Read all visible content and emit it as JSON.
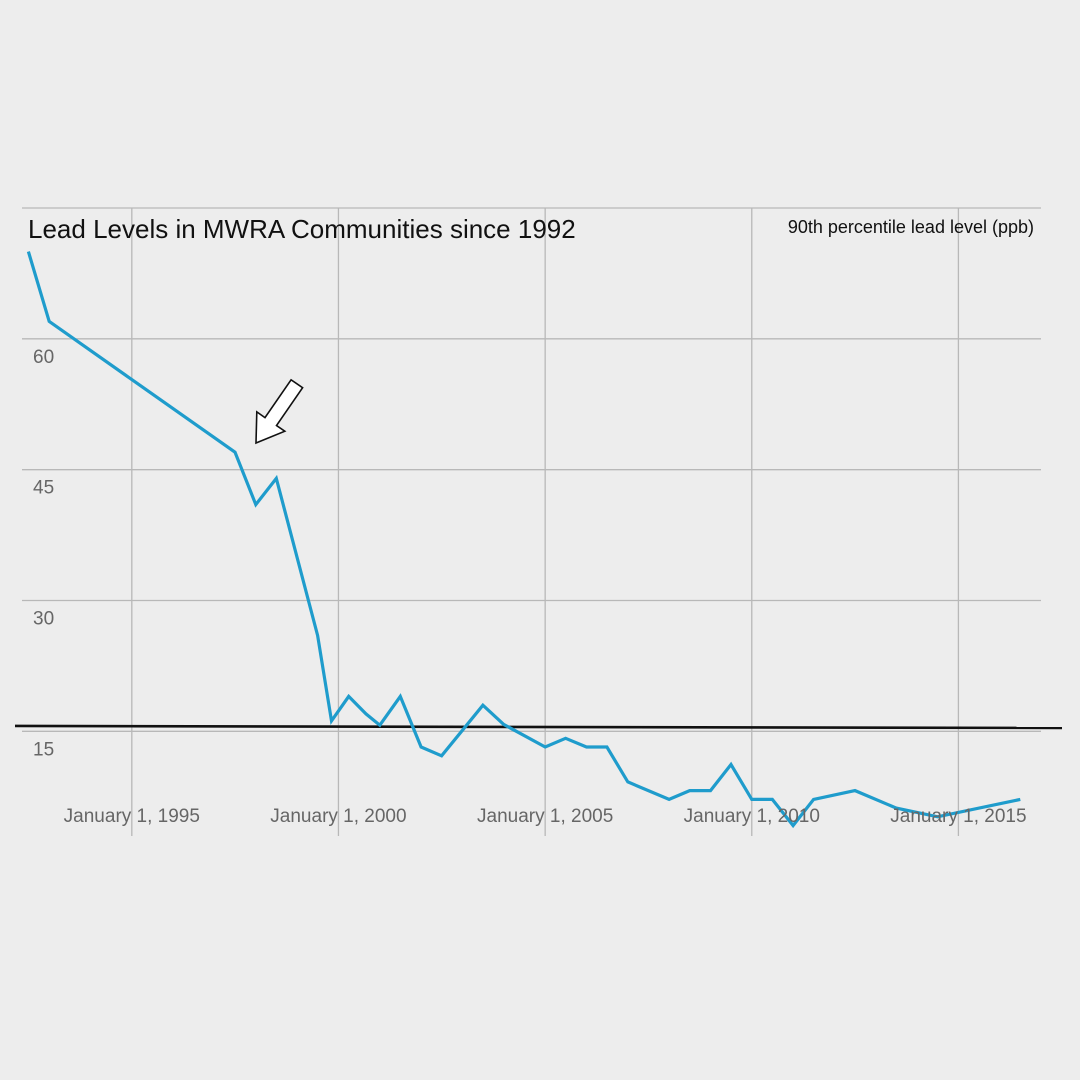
{
  "chart_data": {
    "type": "line",
    "title": "Lead Levels in MWRA Communities since 1992",
    "ylabel": "90th percentile lead level (ppb)",
    "xlabel": "",
    "x_tick_labels": [
      "January 1, 1995",
      "January 1, 2000",
      "January 1, 2005",
      "January 1, 2010",
      "January 1, 2015"
    ],
    "x_ticks": [
      "1995-01-01",
      "2000-01-01",
      "2005-01-01",
      "2010-01-01",
      "2015-01-01"
    ],
    "y_ticks": [
      15,
      30,
      45,
      60
    ],
    "xlim": [
      "1992-06-01",
      "2016-12-31"
    ],
    "ylim": [
      3,
      75
    ],
    "grid": true,
    "series": [
      {
        "color": "#1f9ccc",
        "points": [
          {
            "x": "1992-07-01",
            "y": 70
          },
          {
            "x": "1993-01-01",
            "y": 62
          },
          {
            "x": "1997-07-01",
            "y": 47
          },
          {
            "x": "1998-01-01",
            "y": 41
          },
          {
            "x": "1998-07-01",
            "y": 44
          },
          {
            "x": "1999-07-01",
            "y": 26
          },
          {
            "x": "1999-11-01",
            "y": 16.2
          },
          {
            "x": "2000-04-01",
            "y": 19
          },
          {
            "x": "2000-09-01",
            "y": 17
          },
          {
            "x": "2001-01-01",
            "y": 15.7
          },
          {
            "x": "2001-07-01",
            "y": 19
          },
          {
            "x": "2002-01-01",
            "y": 13.2
          },
          {
            "x": "2002-07-01",
            "y": 12.2
          },
          {
            "x": "2003-07-01",
            "y": 18
          },
          {
            "x": "2004-01-01",
            "y": 15.8
          },
          {
            "x": "2005-01-01",
            "y": 13.2
          },
          {
            "x": "2005-07-01",
            "y": 14.2
          },
          {
            "x": "2006-01-01",
            "y": 13.2
          },
          {
            "x": "2006-07-01",
            "y": 13.2
          },
          {
            "x": "2007-01-01",
            "y": 9.2
          },
          {
            "x": "2008-01-01",
            "y": 7.2
          },
          {
            "x": "2008-07-01",
            "y": 8.2
          },
          {
            "x": "2009-01-01",
            "y": 8.2
          },
          {
            "x": "2009-07-01",
            "y": 11.2
          },
          {
            "x": "2010-01-01",
            "y": 7.2
          },
          {
            "x": "2010-07-01",
            "y": 7.2
          },
          {
            "x": "2011-01-01",
            "y": 4.2
          },
          {
            "x": "2011-07-01",
            "y": 7.2
          },
          {
            "x": "2012-07-01",
            "y": 8.2
          },
          {
            "x": "2013-07-01",
            "y": 6.2
          },
          {
            "x": "2014-07-01",
            "y": 5.2
          },
          {
            "x": "2016-07-01",
            "y": 7.2
          }
        ]
      }
    ],
    "reference_line": {
      "y": 15.5,
      "color": "#111111"
    },
    "annotations": [
      {
        "type": "arrow",
        "points_to": {
          "x": "1998-01-01",
          "y": 47
        },
        "direction": "down-left"
      }
    ]
  }
}
